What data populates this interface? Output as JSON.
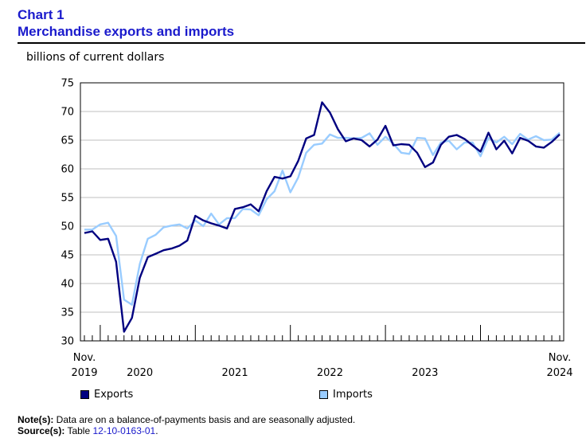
{
  "header": {
    "chart_number": "Chart 1",
    "title": "Merchandise exports and imports",
    "unit_label": "billions of current dollars"
  },
  "legend": {
    "exports_label": "Exports",
    "imports_label": "Imports"
  },
  "notes": {
    "note_label": "Note(s):",
    "note_text": " Data are on a balance-of-payments basis and are seasonally adjusted.",
    "source_label": "Source(s):",
    "source_text": " Table ",
    "source_link": "12-10-0163-01",
    "source_end": "."
  },
  "colors": {
    "exports": "#000080",
    "imports": "#99ccff",
    "title": "#1a1acc"
  },
  "chart_data": {
    "type": "line",
    "title": "Merchandise exports and imports",
    "ylabel": "billions of current dollars",
    "ylim": [
      30,
      75
    ],
    "yticks": [
      30,
      35,
      40,
      45,
      50,
      55,
      60,
      65,
      70,
      75
    ],
    "x_start": "2019-11",
    "x_end": "2024-11",
    "x_labels": [
      {
        "month_index": 0,
        "line1": "Nov.",
        "line2": "2019"
      },
      {
        "month_index": 7,
        "line1": "",
        "line2": "2020"
      },
      {
        "month_index": 19,
        "line1": "",
        "line2": "2021"
      },
      {
        "month_index": 31,
        "line1": "",
        "line2": "2022"
      },
      {
        "month_index": 43,
        "line1": "",
        "line2": "2023"
      },
      {
        "month_index": 60,
        "line1": "Nov.",
        "line2": "2024"
      }
    ],
    "legend_position": "bottom",
    "grid": "horizontal",
    "series": [
      {
        "name": "Exports",
        "values": [
          48.8,
          49.1,
          47.6,
          47.8,
          43.8,
          31.6,
          34.0,
          41.0,
          44.6,
          45.2,
          45.8,
          46.1,
          46.6,
          47.5,
          51.8,
          51.0,
          50.5,
          50.1,
          49.6,
          53.0,
          53.3,
          53.8,
          52.6,
          56.1,
          58.6,
          58.3,
          58.7,
          61.4,
          65.3,
          65.9,
          71.6,
          69.8,
          66.9,
          64.8,
          65.3,
          65.0,
          63.9,
          65.1,
          67.5,
          64.1,
          64.3,
          64.2,
          62.8,
          60.3,
          61.1,
          64.2,
          65.6,
          65.9,
          65.2,
          64.1,
          63.0,
          66.3,
          63.4,
          64.9,
          62.7,
          65.4,
          64.9,
          63.9,
          63.7,
          64.7,
          66.0
        ]
      },
      {
        "name": "Imports",
        "values": [
          49.4,
          49.4,
          50.3,
          50.6,
          48.3,
          37.2,
          36.3,
          43.4,
          47.8,
          48.5,
          49.8,
          50.1,
          50.3,
          49.6,
          51.0,
          50.0,
          52.2,
          50.3,
          51.4,
          51.4,
          53.0,
          52.9,
          51.9,
          54.7,
          56.1,
          59.7,
          55.9,
          58.5,
          62.8,
          64.2,
          64.4,
          66.0,
          65.4,
          65.4,
          65.3,
          65.4,
          66.2,
          64.2,
          65.6,
          64.4,
          62.8,
          62.6,
          65.4,
          65.3,
          62.4,
          64.6,
          64.9,
          63.4,
          64.6,
          64.6,
          62.2,
          65.4,
          64.6,
          65.6,
          64.3,
          66.1,
          65.1,
          65.7,
          65.0,
          65.1,
          66.3
        ]
      }
    ]
  }
}
